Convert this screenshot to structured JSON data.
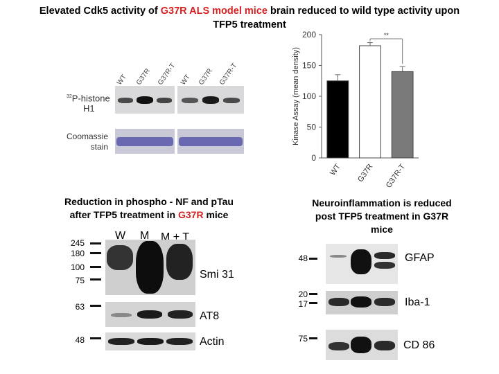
{
  "title": {
    "part1": "Elevated Cdk5 activity of ",
    "highlight": "G37R ALS model mice",
    "part2": " brain reduced to wild type activity upon",
    "line2": "TFP5 treatment"
  },
  "panel_a": {
    "lanes": [
      "WT",
      "G37R",
      "G37R-T",
      "WT",
      "G37R",
      "G37R-T"
    ],
    "row1_label_sup": "32",
    "row1_label": "P-histone",
    "row1_label_line2": "H1",
    "row2_label": "Coomassie",
    "row2_label_line2": "stain"
  },
  "chart_data": {
    "type": "bar",
    "categories": [
      "WT",
      "G37R",
      "G37R-T"
    ],
    "values": [
      125,
      182,
      140
    ],
    "errors": [
      10,
      5,
      8
    ],
    "colors": [
      "#000000",
      "#ffffff",
      "#7a7a7a"
    ],
    "ylabel": "Kinase Assay (mean density)",
    "ylim": [
      0,
      200
    ],
    "yticks": [
      0,
      50,
      100,
      150,
      200
    ],
    "significance": "**"
  },
  "panel_c": {
    "caption_line1": "Reduction in phospho - NF and p",
    "caption_line1b": "Tau",
    "caption_line2a": "after TFP5 treatment in ",
    "caption_highlight": "G37R",
    "caption_line2b": " mice",
    "lanes": [
      "W",
      "M",
      "M + T"
    ],
    "markers": [
      "245",
      "180",
      "100",
      "75",
      "63",
      "48"
    ],
    "labels": [
      "Smi 31",
      "AT8",
      "Actin"
    ]
  },
  "panel_d": {
    "caption": [
      "Neuroinflammation is reduced",
      "post TFP5 treatment in G37R",
      "mice"
    ],
    "markers": [
      "48",
      "20",
      "17",
      "75"
    ],
    "labels": [
      "GFAP",
      "Iba-1",
      "CD 86"
    ]
  }
}
